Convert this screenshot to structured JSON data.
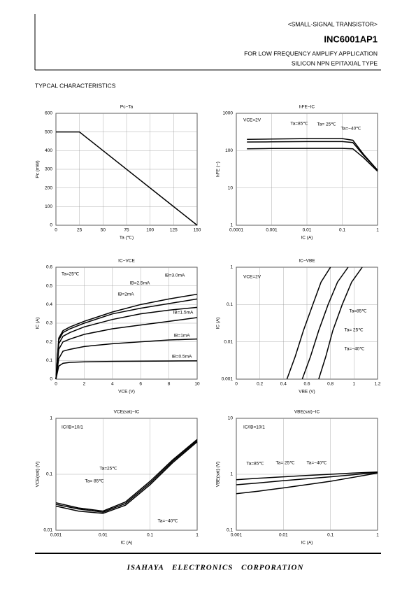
{
  "header": {
    "category": "<SMALL-SIGNAL TRANSISTOR>",
    "part": "INC6001AP1",
    "application": "FOR LOW FREQUENCY AMPLIFY APPLICATION",
    "type": "SILICON NPN EPITAXIAL TYPE"
  },
  "section_title": "TYPCAL CHARACTERISTICS",
  "footer": "ISAHAYA ELECTRONICS CORPORATION",
  "chart_data": [
    {
      "type": "line",
      "title": "Pc−Ta",
      "x_label": "Ta (℃)",
      "y_label": "Pc (mW)",
      "color": "#000000",
      "grid": true,
      "x": [
        0,
        25,
        150
      ],
      "series": [
        {
          "values": [
            500,
            500,
            0
          ]
        }
      ],
      "xlim": [
        0,
        150
      ],
      "xticks": [
        0,
        25,
        50,
        75,
        100,
        125,
        150
      ],
      "ylim": [
        0,
        600
      ],
      "yticks": [
        0,
        100,
        200,
        300,
        400,
        500,
        600
      ]
    },
    {
      "type": "line",
      "title": "hFE−IC",
      "x_label": "IC (A)",
      "y_label": "hFE (−)",
      "color": "#000000",
      "grid": true,
      "xlog": true,
      "ylog": true,
      "annotation": "VCE=2V",
      "x": [
        0.0002,
        0.001,
        0.01,
        0.1,
        0.2,
        0.4,
        1
      ],
      "series": [
        {
          "name": "Ta=85℃",
          "values": [
            200,
            205,
            210,
            210,
            190,
            80,
            30
          ]
        },
        {
          "name": "Ta= 25℃",
          "values": [
            170,
            172,
            175,
            175,
            165,
            75,
            30
          ]
        },
        {
          "name": "Ta=−40℃",
          "values": [
            112,
            114,
            115,
            115,
            112,
            65,
            28
          ]
        }
      ],
      "xlim": [
        0.0001,
        1
      ],
      "xticks": [
        0.0001,
        0.001,
        0.01,
        0.1,
        1
      ],
      "ylim": [
        1,
        1000
      ],
      "yticks": [
        1,
        10,
        100,
        1000
      ]
    },
    {
      "type": "line",
      "title": "IC−VCE",
      "x_label": "VCE (V)",
      "y_label": "IC (A)",
      "color": "#000000",
      "grid": true,
      "annotation": "Ta=25℃",
      "x": [
        0,
        0.2,
        0.5,
        1,
        2,
        4,
        6,
        8,
        10
      ],
      "series": [
        {
          "name": "IB=0.5mA",
          "values": [
            0,
            0.07,
            0.085,
            0.09,
            0.093,
            0.095,
            0.096,
            0.097,
            0.098
          ]
        },
        {
          "name": "IB=1mA",
          "values": [
            0,
            0.11,
            0.15,
            0.16,
            0.175,
            0.19,
            0.2,
            0.21,
            0.215
          ]
        },
        {
          "name": "IB=1.5mA",
          "values": [
            0,
            0.16,
            0.2,
            0.215,
            0.24,
            0.27,
            0.29,
            0.31,
            0.33
          ]
        },
        {
          "name": "IB=2mA",
          "values": [
            0,
            0.19,
            0.23,
            0.25,
            0.28,
            0.32,
            0.35,
            0.37,
            0.385
          ]
        },
        {
          "name": "IB=2.5mA",
          "values": [
            0,
            0.21,
            0.25,
            0.27,
            0.3,
            0.35,
            0.38,
            0.405,
            0.43
          ]
        },
        {
          "name": "IB=3.0mA",
          "values": [
            0,
            0.22,
            0.26,
            0.28,
            0.31,
            0.36,
            0.4,
            0.43,
            0.455
          ]
        }
      ],
      "xlim": [
        0,
        10
      ],
      "xticks": [
        0,
        2,
        4,
        6,
        8,
        10
      ],
      "ylim": [
        0,
        0.6
      ],
      "yticks": [
        0,
        0.1,
        0.2,
        0.3,
        0.4,
        0.5,
        0.6
      ]
    },
    {
      "type": "line",
      "title": "IC−VBE",
      "x_label": "VBE (V)",
      "y_label": "IC (A)",
      "color": "#000000",
      "grid": true,
      "ylog": true,
      "annotation": "VCE=2V",
      "series": [
        {
          "name": "Ta=85℃",
          "x": [
            0.43,
            0.5,
            0.57,
            0.65,
            0.72,
            0.8
          ],
          "values": [
            0.001,
            0.004,
            0.02,
            0.1,
            0.4,
            1
          ]
        },
        {
          "name": "Ta= 25℃",
          "x": [
            0.56,
            0.63,
            0.7,
            0.78,
            0.86,
            0.95
          ],
          "values": [
            0.001,
            0.004,
            0.02,
            0.1,
            0.4,
            1
          ]
        },
        {
          "name": "Ta=−40℃",
          "x": [
            0.7,
            0.76,
            0.82,
            0.9,
            0.98,
            1.07
          ],
          "values": [
            0.001,
            0.004,
            0.02,
            0.1,
            0.4,
            1
          ]
        }
      ],
      "xlim": [
        0,
        1.2
      ],
      "xticks": [
        0,
        0.2,
        0.4,
        0.6,
        0.8,
        1,
        1.2
      ],
      "ylim": [
        0.001,
        1
      ],
      "yticks": [
        0.001,
        0.01,
        0.1,
        1
      ]
    },
    {
      "type": "line",
      "title": "VCE(sat)−IC",
      "x_label": "IC (A)",
      "y_label": "VCE(sat) (V)",
      "color": "#000000",
      "grid": true,
      "xlog": true,
      "ylog": true,
      "annotation": "IC/IB=10/1",
      "x": [
        0.001,
        0.003,
        0.01,
        0.03,
        0.1,
        0.3,
        1
      ],
      "series": [
        {
          "name": "Ta=25℃",
          "values": [
            0.029,
            0.024,
            0.021,
            0.03,
            0.07,
            0.17,
            0.4
          ]
        },
        {
          "name": "Ta= 85℃",
          "values": [
            0.031,
            0.025,
            0.022,
            0.032,
            0.075,
            0.18,
            0.42
          ]
        },
        {
          "name": "Ta=−40℃",
          "values": [
            0.027,
            0.022,
            0.02,
            0.028,
            0.065,
            0.16,
            0.38
          ]
        }
      ],
      "xlim": [
        0.001,
        1
      ],
      "xticks": [
        0.001,
        0.01,
        0.1,
        1
      ],
      "ylim": [
        0.01,
        1
      ],
      "yticks": [
        0.01,
        0.1,
        1
      ]
    },
    {
      "type": "line",
      "title": "VBE(sat)−IC",
      "x_label": "IC (A)",
      "y_label": "VBE(sat) (V)",
      "color": "#000000",
      "grid": true,
      "xlog": true,
      "ylog": true,
      "annotation": "IC/IB=10/1",
      "x": [
        0.001,
        0.003,
        0.01,
        0.03,
        0.1,
        0.3,
        1
      ],
      "series": [
        {
          "name": "Ta=85℃",
          "values": [
            0.45,
            0.5,
            0.57,
            0.65,
            0.75,
            0.88,
            1.05
          ]
        },
        {
          "name": "Ta= 25℃",
          "values": [
            0.65,
            0.7,
            0.77,
            0.83,
            0.9,
            0.98,
            1.08
          ]
        },
        {
          "name": "Ta=−40℃",
          "values": [
            0.8,
            0.85,
            0.9,
            0.95,
            1,
            1.05,
            1.1
          ]
        }
      ],
      "xlim": [
        0.001,
        1
      ],
      "xticks": [
        0.001,
        0.01,
        0.1,
        1
      ],
      "ylim": [
        0.1,
        10
      ],
      "yticks": [
        0.1,
        1,
        10
      ]
    }
  ]
}
